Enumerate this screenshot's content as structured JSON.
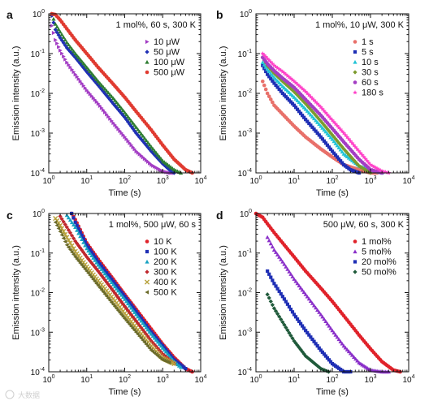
{
  "watermark": "大数据",
  "chart_data": [
    {
      "panel": "a",
      "type": "scatter",
      "annotation": "1 mol%, 60 s, 300 K",
      "xlabel": "Time (s)",
      "ylabel": "Emission intensity (a.u.)",
      "xscale": "log",
      "yscale": "log",
      "xlim": [
        1,
        10000
      ],
      "ylim": [
        0.0001,
        1
      ],
      "legend_position": "right",
      "series": [
        {
          "name": "10 μW",
          "color": "#a33dc4",
          "marker": "triangle-right",
          "x": [
            1.2,
            1.5,
            2,
            3,
            5,
            10,
            20,
            50,
            100,
            200,
            500,
            1000,
            1500,
            2000
          ],
          "y": [
            0.5,
            0.22,
            0.12,
            0.06,
            0.03,
            0.012,
            0.0055,
            0.0018,
            0.0008,
            0.00035,
            0.00016,
            0.00011,
            0.0001,
            0.0001
          ]
        },
        {
          "name": "50 μW",
          "color": "#1f2fb5",
          "marker": "diamond",
          "x": [
            1.2,
            1.5,
            2,
            3,
            5,
            10,
            20,
            50,
            100,
            200,
            500,
            1000,
            1500,
            2000
          ],
          "y": [
            0.9,
            0.4,
            0.25,
            0.14,
            0.08,
            0.035,
            0.016,
            0.0055,
            0.0025,
            0.001,
            0.00035,
            0.00017,
            0.00012,
            0.0001
          ]
        },
        {
          "name": "100 μW",
          "color": "#2e7d32",
          "marker": "triangle-up",
          "x": [
            1.2,
            1.5,
            2,
            3,
            5,
            10,
            20,
            50,
            100,
            200,
            500,
            1000,
            2000,
            3000
          ],
          "y": [
            1.0,
            0.55,
            0.35,
            0.19,
            0.1,
            0.045,
            0.02,
            0.0075,
            0.0033,
            0.0014,
            0.00045,
            0.0002,
            0.00012,
            0.0001
          ]
        },
        {
          "name": "500 μW",
          "color": "#e03a30",
          "marker": "circle",
          "x": [
            1.2,
            1.5,
            2,
            3,
            5,
            10,
            20,
            50,
            100,
            200,
            500,
            1000,
            2000,
            4000,
            6000
          ],
          "y": [
            1.0,
            0.95,
            0.7,
            0.42,
            0.22,
            0.1,
            0.045,
            0.017,
            0.008,
            0.0035,
            0.0012,
            0.0005,
            0.00022,
            0.00012,
            0.0001
          ]
        }
      ]
    },
    {
      "panel": "b",
      "type": "scatter",
      "annotation": "1 mol%, 10 μW, 300 K",
      "xlabel": "Time (s)",
      "ylabel": "Emission intensity (a.u.)",
      "xscale": "log",
      "yscale": "log",
      "xlim": [
        1,
        10000
      ],
      "ylim": [
        0.0001,
        1
      ],
      "legend_position": "right",
      "series": [
        {
          "name": "1 s",
          "color": "#e8706a",
          "marker": "circle",
          "x": [
            1.5,
            2,
            3,
            5,
            10,
            20,
            50,
            100,
            200,
            500,
            1000,
            1500
          ],
          "y": [
            0.02,
            0.01,
            0.005,
            0.003,
            0.0015,
            0.0008,
            0.0004,
            0.00025,
            0.00016,
            0.00012,
            0.0001,
            0.0001
          ]
        },
        {
          "name": "5 s",
          "color": "#1f2fb5",
          "marker": "square",
          "x": [
            1.5,
            2,
            3,
            5,
            10,
            20,
            50,
            100,
            200,
            300,
            500
          ],
          "y": [
            0.05,
            0.03,
            0.018,
            0.01,
            0.005,
            0.0022,
            0.0008,
            0.00035,
            0.00016,
            0.00012,
            0.0001
          ]
        },
        {
          "name": "10 s",
          "color": "#22c4d6",
          "marker": "triangle-up",
          "x": [
            1.5,
            2,
            3,
            5,
            10,
            20,
            50,
            100,
            200,
            500,
            1000,
            2000
          ],
          "y": [
            0.06,
            0.04,
            0.025,
            0.015,
            0.008,
            0.004,
            0.0015,
            0.0007,
            0.0003,
            0.00015,
            0.00012,
            0.0001
          ]
        },
        {
          "name": "30 s",
          "color": "#7c9b2e",
          "marker": "diamond",
          "x": [
            1.5,
            2,
            3,
            5,
            10,
            20,
            50,
            100,
            200,
            500,
            1000
          ],
          "y": [
            0.08,
            0.05,
            0.032,
            0.02,
            0.011,
            0.0055,
            0.002,
            0.0009,
            0.0004,
            0.00015,
            0.0001
          ]
        },
        {
          "name": "60 s",
          "color": "#a33dc4",
          "marker": "circle",
          "x": [
            1.5,
            2,
            3,
            5,
            10,
            20,
            50,
            100,
            200,
            500,
            1000,
            2000
          ],
          "y": [
            0.08,
            0.055,
            0.037,
            0.024,
            0.014,
            0.007,
            0.0028,
            0.0013,
            0.0006,
            0.00022,
            0.00012,
            0.0001
          ]
        },
        {
          "name": "180 s",
          "color": "#ff40c8",
          "marker": "star",
          "x": [
            1.5,
            2,
            3,
            5,
            10,
            20,
            50,
            100,
            200,
            500,
            1000,
            2000,
            3000
          ],
          "y": [
            0.1,
            0.075,
            0.05,
            0.035,
            0.02,
            0.011,
            0.0045,
            0.0021,
            0.001,
            0.00035,
            0.00016,
            0.00011,
            0.0001
          ]
        }
      ]
    },
    {
      "panel": "c",
      "type": "scatter",
      "annotation": "1 mol%, 500 μW, 60 s",
      "xlabel": "Time (s)",
      "ylabel": "Emission intensity (a.u.)",
      "xscale": "log",
      "yscale": "log",
      "xlim": [
        1,
        10000
      ],
      "ylim": [
        0.0001,
        1
      ],
      "legend_position": "right",
      "series": [
        {
          "name": "10 K",
          "color": "#e0222a",
          "marker": "circle",
          "x": [
            4,
            5,
            10,
            20,
            50,
            100,
            200,
            500,
            1000,
            2000,
            4000,
            6000
          ],
          "y": [
            1.0,
            0.7,
            0.18,
            0.07,
            0.022,
            0.009,
            0.0038,
            0.0012,
            0.0005,
            0.00023,
            0.00012,
            0.0001
          ]
        },
        {
          "name": "100 K",
          "color": "#1f2fb5",
          "marker": "square",
          "x": [
            4,
            5,
            10,
            20,
            50,
            100,
            200,
            500,
            1000,
            2000,
            4000
          ],
          "y": [
            1.0,
            0.6,
            0.16,
            0.06,
            0.019,
            0.008,
            0.0033,
            0.001,
            0.00045,
            0.0002,
            0.00012
          ]
        },
        {
          "name": "200 K",
          "color": "#17a2c2",
          "marker": "triangle-up",
          "x": [
            3,
            5,
            10,
            20,
            50,
            100,
            200,
            500,
            1000,
            2000,
            3000
          ],
          "y": [
            0.9,
            0.45,
            0.13,
            0.05,
            0.016,
            0.0068,
            0.0028,
            0.0009,
            0.0004,
            0.00018,
            0.00013
          ]
        },
        {
          "name": "300 K",
          "color": "#c0272d",
          "marker": "diamond",
          "x": [
            2,
            3,
            5,
            10,
            20,
            50,
            100,
            200,
            500,
            1000,
            2000
          ],
          "y": [
            0.85,
            0.45,
            0.2,
            0.08,
            0.035,
            0.011,
            0.0045,
            0.0019,
            0.0006,
            0.00028,
            0.00016
          ]
        },
        {
          "name": "400 K",
          "color": "#b8a23c",
          "marker": "cross",
          "x": [
            1.5,
            2,
            3,
            5,
            10,
            20,
            50,
            100,
            200,
            500,
            1000,
            2000
          ],
          "y": [
            0.75,
            0.5,
            0.25,
            0.11,
            0.045,
            0.02,
            0.007,
            0.003,
            0.0013,
            0.00045,
            0.00022,
            0.00016
          ]
        },
        {
          "name": "500 K",
          "color": "#6b6b2a",
          "marker": "triangle-left",
          "x": [
            1.5,
            2,
            3,
            5,
            10,
            20,
            50,
            100,
            200,
            500,
            1000,
            1500
          ],
          "y": [
            0.6,
            0.35,
            0.16,
            0.08,
            0.035,
            0.015,
            0.005,
            0.0022,
            0.001,
            0.00035,
            0.0002,
            0.00017
          ]
        }
      ]
    },
    {
      "panel": "d",
      "type": "scatter",
      "annotation": "500 μW, 60 s, 300 K",
      "xlabel": "Time (s)",
      "ylabel": "Emission intensity (a.u.)",
      "xscale": "log",
      "yscale": "log",
      "xlim": [
        1,
        10000
      ],
      "ylim": [
        0.0001,
        1
      ],
      "legend_position": "right",
      "series": [
        {
          "name": "1 mol%",
          "color": "#e0222a",
          "marker": "circle",
          "x": [
            1,
            1.5,
            2,
            3,
            5,
            10,
            20,
            50,
            100,
            200,
            500,
            1000,
            2000,
            4000,
            6000
          ],
          "y": [
            1.0,
            0.8,
            0.55,
            0.33,
            0.18,
            0.08,
            0.035,
            0.013,
            0.006,
            0.0026,
            0.00085,
            0.00038,
            0.00018,
            0.00011,
            0.0001
          ]
        },
        {
          "name": "5 mol%",
          "color": "#8a2fc9",
          "marker": "triangle-up",
          "x": [
            2,
            3,
            5,
            10,
            20,
            50,
            100,
            200,
            500,
            1000,
            2000,
            3000
          ],
          "y": [
            0.25,
            0.12,
            0.06,
            0.022,
            0.009,
            0.0028,
            0.0011,
            0.00045,
            0.00017,
            0.00011,
            0.0001,
            0.0001
          ]
        },
        {
          "name": "20 mol%",
          "color": "#1f2fb5",
          "marker": "square",
          "x": [
            2,
            3,
            5,
            10,
            20,
            50,
            100,
            200,
            300
          ],
          "y": [
            0.035,
            0.017,
            0.008,
            0.0028,
            0.0011,
            0.00035,
            0.00016,
            0.0001,
            0.0001
          ]
        },
        {
          "name": "50 mol%",
          "color": "#1f5a3a",
          "marker": "diamond",
          "x": [
            2,
            3,
            5,
            10,
            20,
            50,
            80
          ],
          "y": [
            0.009,
            0.004,
            0.0018,
            0.0006,
            0.00025,
            0.00012,
            0.0001
          ]
        }
      ]
    }
  ]
}
